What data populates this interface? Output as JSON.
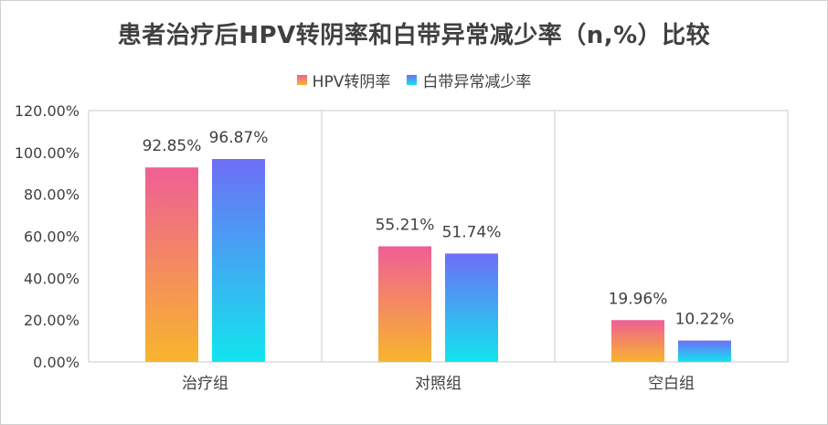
{
  "chart_data": {
    "type": "bar",
    "title": "患者治疗后HPV转阴率和白带异常减少率（n,%）比较",
    "categories": [
      "治疗组",
      "对照组",
      "空白组"
    ],
    "series": [
      {
        "name": "HPV转阴率",
        "values": [
          92.85,
          55.21,
          19.96
        ],
        "labels": [
          "92.85%",
          "55.21%",
          "19.96%"
        ],
        "gradient": [
          "#ef5f95",
          "#f8b52d"
        ]
      },
      {
        "name": "白带异常减少率",
        "values": [
          96.87,
          51.74,
          10.22
        ],
        "labels": [
          "96.87%",
          "51.74%",
          "10.22%"
        ],
        "gradient": [
          "#6e6ef6",
          "#12e5ee"
        ]
      }
    ],
    "yticks": [
      "0.00%",
      "20.00%",
      "40.00%",
      "60.00%",
      "80.00%",
      "100.00%",
      "120.00%"
    ],
    "ylim": [
      0,
      120
    ],
    "grid": "vertical-separators",
    "legend_position": "top"
  }
}
